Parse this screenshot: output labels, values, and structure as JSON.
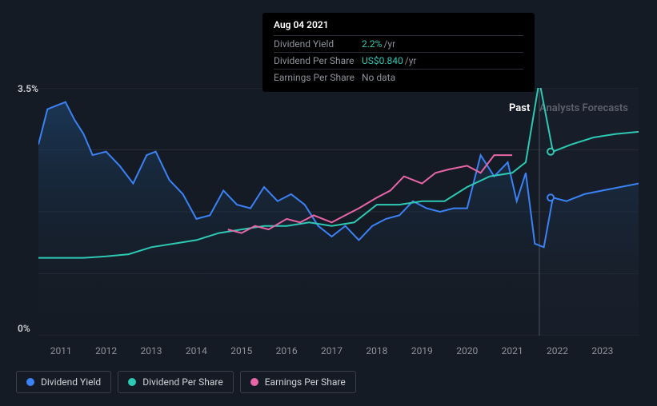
{
  "chart": {
    "type": "line",
    "background_color": "#151b24",
    "grid_color": "#2a2f36",
    "ylim": [
      0,
      3.5
    ],
    "ylabels": [
      {
        "v": 3.5,
        "text": "3.5%"
      },
      {
        "v": 0,
        "text": "0%"
      }
    ],
    "gridlines_y": [
      0,
      0.875,
      1.75,
      2.625,
      3.5
    ],
    "xticks": [
      "2011",
      "2012",
      "2013",
      "2014",
      "2015",
      "2016",
      "2017",
      "2018",
      "2019",
      "2020",
      "2021",
      "2022",
      "2023"
    ],
    "xrange": [
      2010.5,
      2023.8
    ],
    "past_boundary_x": 2021.6,
    "past_label": "Past",
    "forecast_label": "Analysts Forecasts",
    "marker_x": 2021.6,
    "marker_color": "#4a5260",
    "forecast_dot_x": 2021.85,
    "series": {
      "dividend_yield": {
        "color": "#3b82f6",
        "label": "Dividend Yield",
        "points": [
          [
            2010.5,
            2.7
          ],
          [
            2010.7,
            3.2
          ],
          [
            2010.9,
            3.25
          ],
          [
            2011.1,
            3.3
          ],
          [
            2011.3,
            3.05
          ],
          [
            2011.5,
            2.85
          ],
          [
            2011.7,
            2.55
          ],
          [
            2012.0,
            2.6
          ],
          [
            2012.3,
            2.4
          ],
          [
            2012.6,
            2.15
          ],
          [
            2012.9,
            2.55
          ],
          [
            2013.1,
            2.6
          ],
          [
            2013.4,
            2.2
          ],
          [
            2013.7,
            2.0
          ],
          [
            2014.0,
            1.65
          ],
          [
            2014.3,
            1.7
          ],
          [
            2014.6,
            2.05
          ],
          [
            2014.9,
            1.85
          ],
          [
            2015.2,
            1.8
          ],
          [
            2015.5,
            2.1
          ],
          [
            2015.8,
            1.9
          ],
          [
            2016.1,
            2.0
          ],
          [
            2016.4,
            1.85
          ],
          [
            2016.7,
            1.55
          ],
          [
            2017.0,
            1.4
          ],
          [
            2017.3,
            1.55
          ],
          [
            2017.6,
            1.35
          ],
          [
            2017.9,
            1.55
          ],
          [
            2018.2,
            1.65
          ],
          [
            2018.5,
            1.7
          ],
          [
            2018.8,
            1.9
          ],
          [
            2019.1,
            1.8
          ],
          [
            2019.4,
            1.75
          ],
          [
            2019.7,
            1.8
          ],
          [
            2020.0,
            1.8
          ],
          [
            2020.3,
            2.55
          ],
          [
            2020.6,
            2.25
          ],
          [
            2020.9,
            2.45
          ],
          [
            2021.1,
            1.9
          ],
          [
            2021.3,
            2.3
          ],
          [
            2021.5,
            1.3
          ],
          [
            2021.7,
            1.25
          ],
          [
            2021.9,
            1.95
          ],
          [
            2022.2,
            1.9
          ],
          [
            2022.6,
            2.0
          ],
          [
            2023.0,
            2.05
          ],
          [
            2023.4,
            2.1
          ],
          [
            2023.8,
            2.15
          ]
        ],
        "forecast_dot_y": 1.95
      },
      "dividend_per_share": {
        "color": "#2dc9b4",
        "label": "Dividend Per Share",
        "points": [
          [
            2010.5,
            1.1
          ],
          [
            2011.0,
            1.1
          ],
          [
            2011.5,
            1.1
          ],
          [
            2012.0,
            1.12
          ],
          [
            2012.5,
            1.15
          ],
          [
            2013.0,
            1.25
          ],
          [
            2013.5,
            1.3
          ],
          [
            2014.0,
            1.35
          ],
          [
            2014.5,
            1.45
          ],
          [
            2015.0,
            1.5
          ],
          [
            2015.5,
            1.55
          ],
          [
            2016.0,
            1.55
          ],
          [
            2016.5,
            1.6
          ],
          [
            2017.0,
            1.55
          ],
          [
            2017.5,
            1.6
          ],
          [
            2018.0,
            1.85
          ],
          [
            2018.5,
            1.85
          ],
          [
            2019.0,
            1.9
          ],
          [
            2019.5,
            1.9
          ],
          [
            2020.0,
            2.1
          ],
          [
            2020.5,
            2.25
          ],
          [
            2021.0,
            2.3
          ],
          [
            2021.3,
            2.45
          ],
          [
            2021.6,
            3.6
          ],
          [
            2021.9,
            2.6
          ],
          [
            2022.3,
            2.7
          ],
          [
            2022.8,
            2.8
          ],
          [
            2023.3,
            2.85
          ],
          [
            2023.8,
            2.88
          ]
        ],
        "forecast_dot_y": 2.6
      },
      "earnings_per_share": {
        "color": "#e865a8",
        "label": "Earnings Per Share",
        "points": [
          [
            2014.7,
            1.5
          ],
          [
            2015.0,
            1.45
          ],
          [
            2015.3,
            1.55
          ],
          [
            2015.6,
            1.5
          ],
          [
            2016.0,
            1.65
          ],
          [
            2016.3,
            1.6
          ],
          [
            2016.6,
            1.7
          ],
          [
            2017.0,
            1.6
          ],
          [
            2017.3,
            1.7
          ],
          [
            2017.6,
            1.8
          ],
          [
            2018.0,
            1.95
          ],
          [
            2018.3,
            2.05
          ],
          [
            2018.6,
            2.25
          ],
          [
            2019.0,
            2.15
          ],
          [
            2019.3,
            2.3
          ],
          [
            2019.6,
            2.35
          ],
          [
            2020.0,
            2.4
          ],
          [
            2020.3,
            2.3
          ],
          [
            2020.6,
            2.55
          ],
          [
            2021.0,
            2.55
          ]
        ]
      }
    }
  },
  "tooltip": {
    "date": "Aug 04 2021",
    "rows": [
      {
        "label": "Dividend Yield",
        "value": "2.2%",
        "suffix": "/yr",
        "value_class": ""
      },
      {
        "label": "Dividend Per Share",
        "value": "US$0.840",
        "suffix": "/yr",
        "value_class": ""
      },
      {
        "label": "Earnings Per Share",
        "value": "No data",
        "suffix": "",
        "value_class": "gray"
      }
    ]
  },
  "legend_items": [
    {
      "color": "#3b82f6",
      "label": "Dividend Yield"
    },
    {
      "color": "#2dc9b4",
      "label": "Dividend Per Share"
    },
    {
      "color": "#e865a8",
      "label": "Earnings Per Share"
    }
  ]
}
